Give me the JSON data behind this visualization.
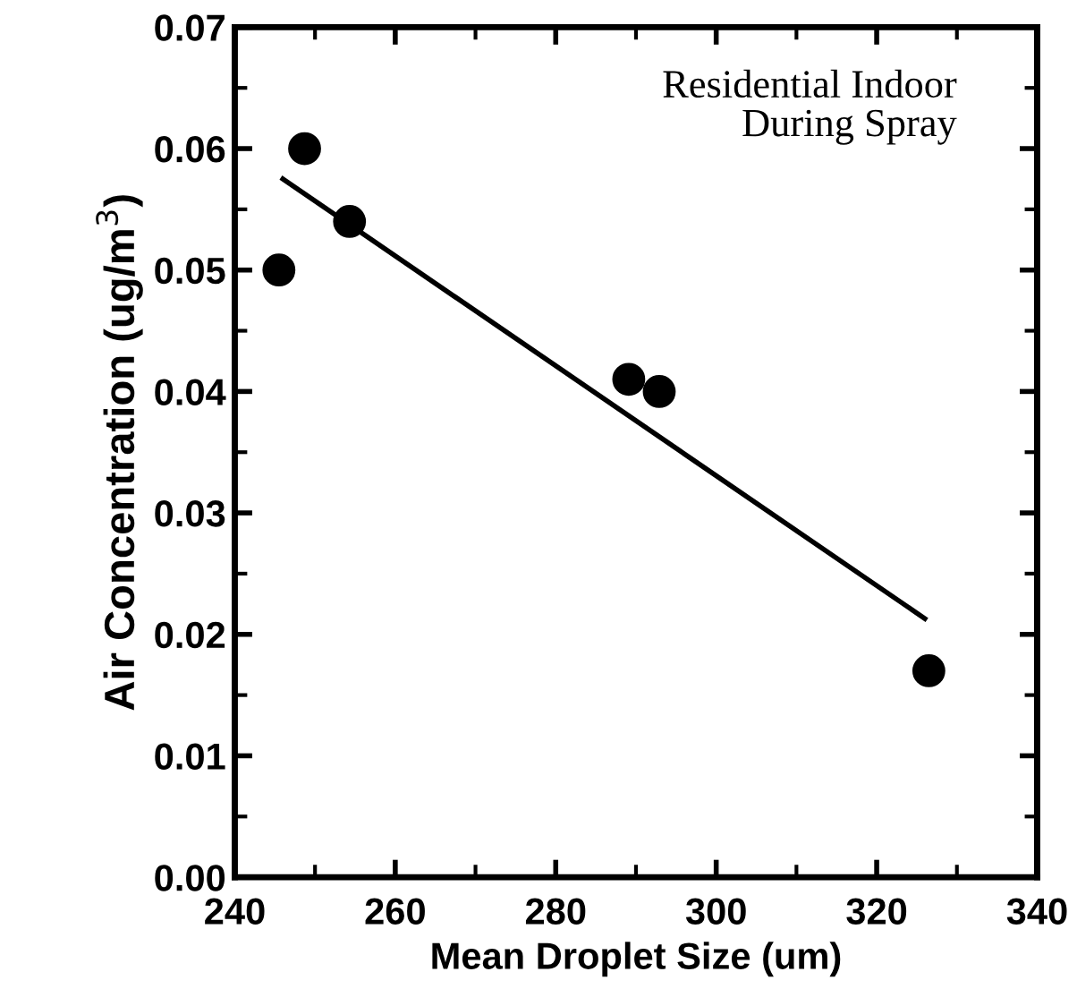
{
  "chart_data": {
    "type": "scatter",
    "xlabel": "Mean Droplet Size (um)",
    "ylabel": "Air Concentration (ug/m$^{3}$)",
    "annotations": [
      "Residential Indoor\nDuring Spray"
    ],
    "series": [
      {
        "color": "#000000",
        "marker": "circle",
        "x": [
          245.5,
          248.7,
          254.3,
          289.1,
          292.9,
          326.5
        ],
        "values": [
          0.05,
          0.06,
          0.054,
          0.041,
          0.04,
          0.017
        ]
      },
      {
        "type": "line",
        "color": "#000000",
        "marker": "none",
        "line_style": "solid",
        "x": [
          246,
          326
        ],
        "values": [
          0.0575,
          0.0213
        ]
      }
    ],
    "xlim": [
      240,
      340
    ],
    "xticks": [
      240,
      260,
      280,
      300,
      320,
      340
    ],
    "ylim": [
      0,
      0.07
    ],
    "yticks": [
      {
        "value": 0,
        "label": "0.00"
      },
      {
        "value": 0.01,
        "label": "0.01"
      },
      {
        "value": 0.02,
        "label": "0.02"
      },
      {
        "value": 0.03,
        "label": "0.03"
      },
      {
        "value": 0.04,
        "label": "0.04"
      },
      {
        "value": 0.05,
        "label": "0.05"
      },
      {
        "value": 0.06,
        "label": "0.06"
      },
      {
        "value": 0.07,
        "label": "0.07"
      }
    ],
    "grid": false,
    "legend": false
  }
}
